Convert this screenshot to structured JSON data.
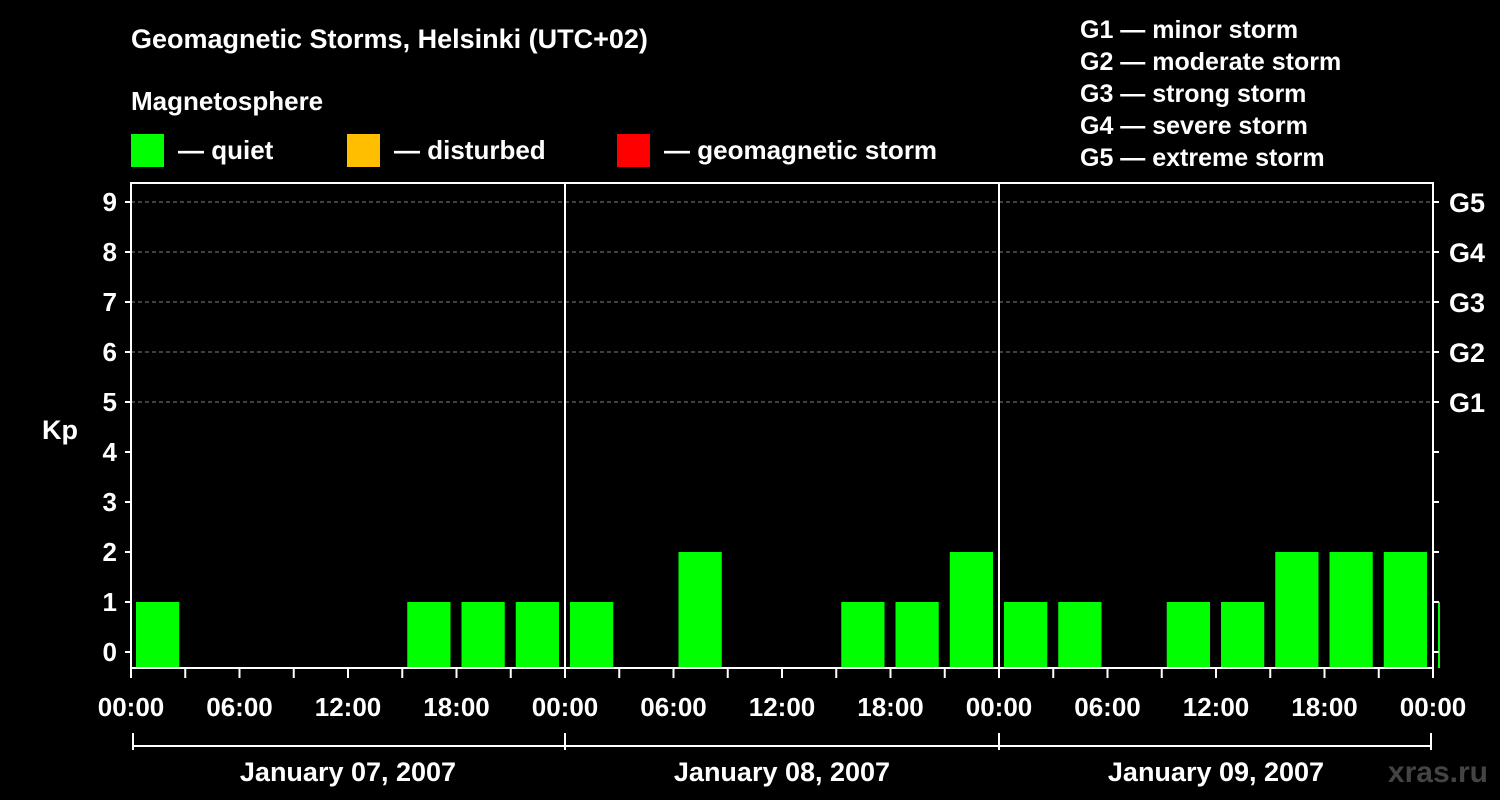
{
  "chart_data": {
    "type": "bar",
    "title": "Geomagnetic Storms, Helsinki (UTC+02)",
    "subtitle": "Magnetosphere",
    "ylabel": "Kp",
    "ylim": [
      0,
      9
    ],
    "yticks": [
      "0",
      "1",
      "2",
      "3",
      "4",
      "5",
      "6",
      "7",
      "8",
      "9"
    ],
    "right_ticks": [
      {
        "kp": 5,
        "label": "G1"
      },
      {
        "kp": 6,
        "label": "G2"
      },
      {
        "kp": 7,
        "label": "G3"
      },
      {
        "kp": 8,
        "label": "G4"
      },
      {
        "kp": 9,
        "label": "G5"
      }
    ],
    "x_tick_labels": [
      "00:00",
      "06:00",
      "12:00",
      "18:00",
      "00:00",
      "06:00",
      "12:00",
      "18:00",
      "00:00",
      "06:00",
      "12:00",
      "18:00",
      "00:00"
    ],
    "days": [
      "January 07, 2007",
      "January 08, 2007",
      "January 09, 2007"
    ],
    "bars": [
      {
        "start_hour": 0,
        "kp": 1
      },
      {
        "start_hour": 3,
        "kp": 0
      },
      {
        "start_hour": 6,
        "kp": 0
      },
      {
        "start_hour": 9,
        "kp": 0
      },
      {
        "start_hour": 12,
        "kp": 0
      },
      {
        "start_hour": 15,
        "kp": 1
      },
      {
        "start_hour": 18,
        "kp": 1
      },
      {
        "start_hour": 21,
        "kp": 1
      },
      {
        "start_hour": 24,
        "kp": 1
      },
      {
        "start_hour": 27,
        "kp": 0
      },
      {
        "start_hour": 30,
        "kp": 2
      },
      {
        "start_hour": 33,
        "kp": 0
      },
      {
        "start_hour": 36,
        "kp": 0
      },
      {
        "start_hour": 39,
        "kp": 1
      },
      {
        "start_hour": 42,
        "kp": 1
      },
      {
        "start_hour": 45,
        "kp": 2
      },
      {
        "start_hour": 48,
        "kp": 1
      },
      {
        "start_hour": 51,
        "kp": 1
      },
      {
        "start_hour": 54,
        "kp": 0
      },
      {
        "start_hour": 57,
        "kp": 1
      },
      {
        "start_hour": 60,
        "kp": 1
      },
      {
        "start_hour": 63,
        "kp": 2
      },
      {
        "start_hour": 66,
        "kp": 2
      },
      {
        "start_hour": 69,
        "kp": 2
      },
      {
        "start_hour": 72,
        "kp": 1
      }
    ],
    "grid": true,
    "colors": {
      "quiet": "#00ff00",
      "disturbed": "#ffbf00",
      "storm": "#ff0000",
      "grid": "#808080",
      "axis": "#ffffff",
      "background": "#000000"
    }
  },
  "legend": {
    "quiet": "— quiet",
    "disturbed": "— disturbed",
    "storm": "— geomagnetic storm"
  },
  "storm_scale": [
    "G1 — minor storm",
    "G2 — moderate storm",
    "G3 — strong storm",
    "G4 — severe storm",
    "G5 — extreme storm"
  ],
  "watermark": "xras.ru"
}
